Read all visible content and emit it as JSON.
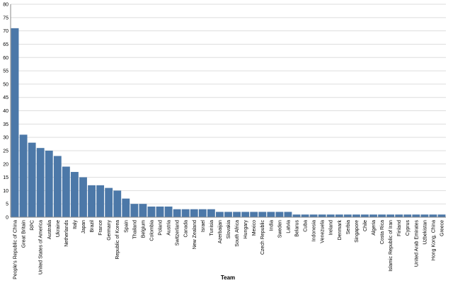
{
  "chart_data": {
    "type": "bar",
    "x_label": "Team",
    "categories": [
      "People's Republic of China",
      "Great Britain",
      "RPC",
      "United States of America",
      "Australia",
      "Ukraine",
      "Netherlands",
      "Italy",
      "Japan",
      "Brazil",
      "France",
      "Germany",
      "Republic of Korea",
      "Spain",
      "Thailand",
      "Belgium",
      "Colombia",
      "Poland",
      "Austria",
      "Switzerland",
      "Canada",
      "New Zealand",
      "Israel",
      "Tunisia",
      "Azerbaijan",
      "Slovakia",
      "South Africa",
      "Hungary",
      "Mexico",
      "Czech Republic",
      "India",
      "Sweden",
      "Latvia",
      "Belarus",
      "Cuba",
      "Indonesia",
      "Venezuela",
      "Ireland",
      "Denmark",
      "Serbia",
      "Singapore",
      "Chile",
      "Algeria",
      "Costa Rica",
      "Islamic Republic of Iran",
      "Finland",
      "Cyprus",
      "United Arab Emirates",
      "Uzbekistan",
      "Hong Kong, China",
      "Greece"
    ],
    "values": [
      71,
      31,
      28,
      26,
      25,
      23,
      19,
      17,
      15,
      12,
      12,
      11,
      10,
      7,
      5,
      5,
      4,
      4,
      4,
      3,
      3,
      3,
      3,
      3,
      2,
      2,
      2,
      2,
      2,
      2,
      2,
      2,
      2,
      1,
      1,
      1,
      1,
      1,
      1,
      1,
      1,
      1,
      1,
      1,
      1,
      1,
      1,
      1,
      1,
      1,
      1
    ],
    "color": "#4c78a8",
    "ylim": [
      0,
      80
    ],
    "yticks": [
      0,
      5,
      10,
      15,
      20,
      25,
      30,
      35,
      40,
      45,
      50,
      55,
      60,
      65,
      70,
      75,
      80
    ],
    "grid": true
  }
}
